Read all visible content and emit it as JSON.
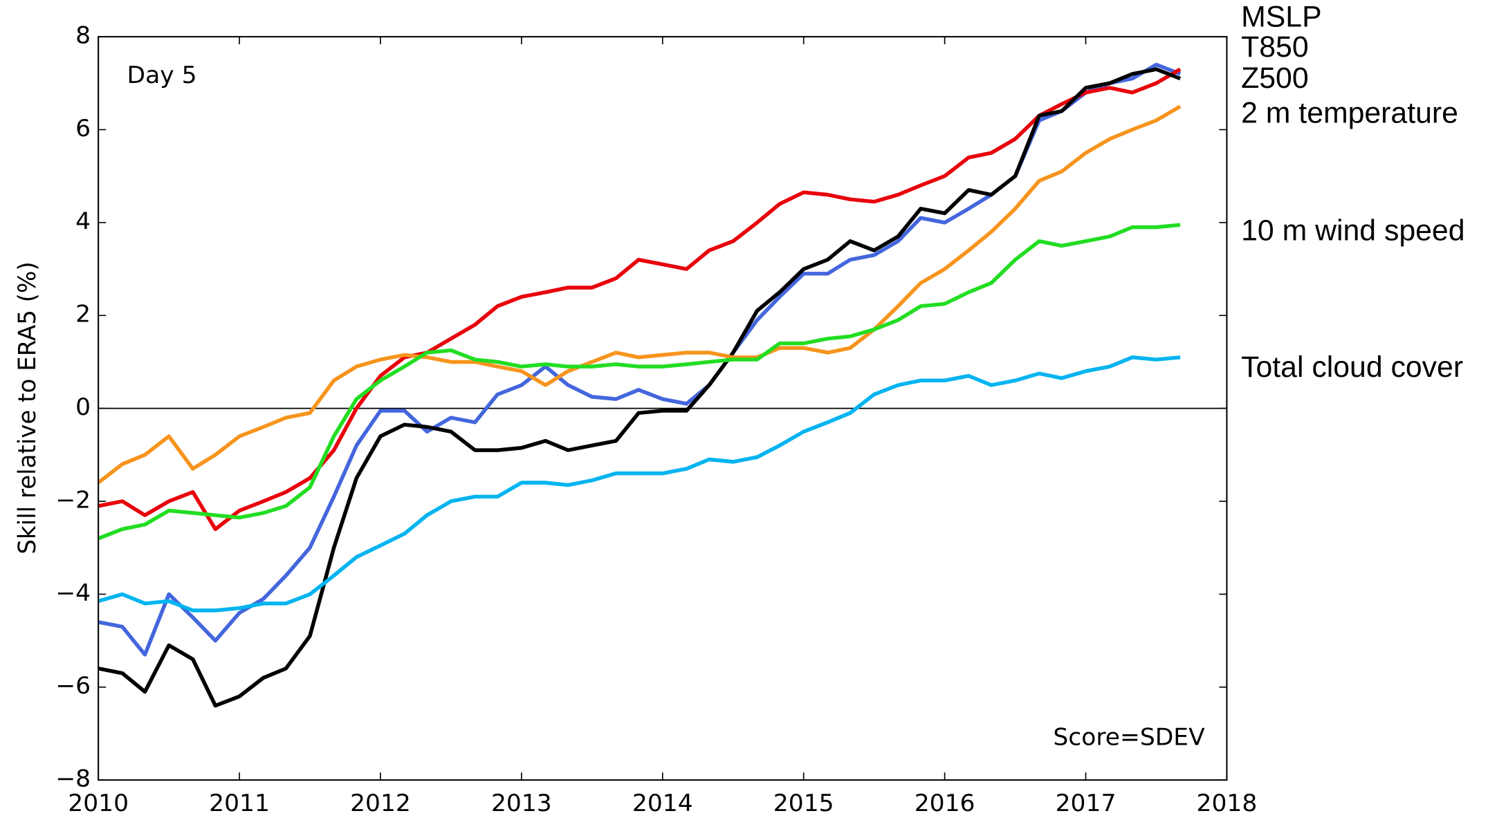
{
  "chart_data": {
    "type": "line",
    "annotations": [
      "Day 5",
      "Score=SDEV"
    ],
    "y_label": "Skill relative to ERA5 (%)",
    "x": [
      2010,
      2010.17,
      2010.33,
      2010.5,
      2010.67,
      2010.83,
      2011,
      2011.17,
      2011.33,
      2011.5,
      2011.67,
      2011.83,
      2012,
      2012.17,
      2012.33,
      2012.5,
      2012.67,
      2012.83,
      2013,
      2013.17,
      2013.33,
      2013.5,
      2013.67,
      2013.83,
      2014,
      2014.17,
      2014.33,
      2014.5,
      2014.67,
      2014.83,
      2015,
      2015.17,
      2015.33,
      2015.5,
      2015.67,
      2015.83,
      2016,
      2016.17,
      2016.33,
      2016.5,
      2016.67,
      2016.83,
      2017,
      2017.17,
      2017.33,
      2017.5,
      2017.67
    ],
    "series": [
      {
        "name": "MSLP",
        "color": "#4466dd",
        "values": [
          -4.6,
          -4.7,
          -5.3,
          -4.0,
          -4.5,
          -5.0,
          -4.4,
          -4.1,
          -3.6,
          -3.0,
          -1.9,
          -0.8,
          -0.05,
          -0.05,
          -0.5,
          -0.2,
          -0.3,
          0.3,
          0.5,
          0.9,
          0.5,
          0.25,
          0.2,
          0.4,
          0.2,
          0.1,
          0.5,
          1.2,
          1.9,
          2.4,
          2.9,
          2.9,
          3.2,
          3.3,
          3.6,
          4.1,
          4.0,
          4.3,
          4.6,
          5.0,
          6.2,
          6.4,
          6.8,
          7.0,
          7.1,
          7.4,
          7.2
        ]
      },
      {
        "name": "T850",
        "color": "#e8000b",
        "values": [
          -2.1,
          -2.0,
          -2.3,
          -2.0,
          -1.8,
          -2.6,
          -2.2,
          -2.0,
          -1.8,
          -1.5,
          -0.9,
          0.0,
          0.7,
          1.1,
          1.2,
          1.5,
          1.8,
          2.2,
          2.4,
          2.5,
          2.6,
          2.6,
          2.8,
          3.2,
          3.1,
          3.0,
          3.4,
          3.6,
          4.0,
          4.4,
          4.65,
          4.6,
          4.5,
          4.45,
          4.6,
          4.8,
          5.0,
          5.4,
          5.5,
          5.8,
          6.3,
          6.55,
          6.8,
          6.9,
          6.8,
          7.0,
          7.3
        ]
      },
      {
        "name": "Z500",
        "color": "#000000",
        "values": [
          -5.6,
          -5.7,
          -6.1,
          -5.1,
          -5.4,
          -6.4,
          -6.2,
          -5.8,
          -5.6,
          -4.9,
          -3.0,
          -1.5,
          -0.6,
          -0.35,
          -0.4,
          -0.5,
          -0.9,
          -0.9,
          -0.85,
          -0.7,
          -0.9,
          -0.8,
          -0.7,
          -0.1,
          -0.05,
          -0.05,
          0.5,
          1.2,
          2.1,
          2.5,
          3.0,
          3.2,
          3.6,
          3.4,
          3.7,
          4.3,
          4.2,
          4.7,
          4.6,
          5.0,
          6.3,
          6.4,
          6.9,
          7.0,
          7.2,
          7.3,
          7.1
        ]
      },
      {
        "name": "2 m temperature",
        "color": "#f7941d",
        "values": [
          -1.6,
          -1.2,
          -1.0,
          -0.6,
          -1.3,
          -1.0,
          -0.6,
          -0.4,
          -0.2,
          -0.1,
          0.6,
          0.9,
          1.05,
          1.15,
          1.1,
          1.0,
          1.0,
          0.9,
          0.8,
          0.5,
          0.8,
          1.0,
          1.2,
          1.1,
          1.15,
          1.2,
          1.2,
          1.1,
          1.1,
          1.3,
          1.3,
          1.2,
          1.3,
          1.7,
          2.2,
          2.7,
          3.0,
          3.4,
          3.8,
          4.3,
          4.9,
          5.1,
          5.5,
          5.8,
          6.0,
          6.2,
          6.5
        ]
      },
      {
        "name": "10 m wind speed",
        "color": "#22dd22",
        "values": [
          -2.8,
          -2.6,
          -2.5,
          -2.2,
          -2.25,
          -2.3,
          -2.35,
          -2.25,
          -2.1,
          -1.7,
          -0.6,
          0.2,
          0.6,
          0.9,
          1.2,
          1.25,
          1.05,
          1.0,
          0.9,
          0.95,
          0.9,
          0.9,
          0.95,
          0.9,
          0.9,
          0.95,
          1.0,
          1.05,
          1.05,
          1.4,
          1.4,
          1.5,
          1.55,
          1.7,
          1.9,
          2.2,
          2.25,
          2.5,
          2.7,
          3.2,
          3.6,
          3.5,
          3.6,
          3.7,
          3.9,
          3.9,
          3.95
        ]
      },
      {
        "name": "Total cloud cover",
        "color": "#00b4f0",
        "values": [
          -4.15,
          -4.0,
          -4.2,
          -4.15,
          -4.35,
          -4.35,
          -4.3,
          -4.2,
          -4.2,
          -4.0,
          -3.6,
          -3.2,
          -2.95,
          -2.7,
          -2.3,
          -2.0,
          -1.9,
          -1.9,
          -1.6,
          -1.6,
          -1.65,
          -1.55,
          -1.4,
          -1.4,
          -1.4,
          -1.3,
          -1.1,
          -1.15,
          -1.05,
          -0.8,
          -0.5,
          -0.3,
          -0.1,
          0.3,
          0.5,
          0.6,
          0.6,
          0.7,
          0.5,
          0.6,
          0.75,
          0.65,
          0.8,
          0.9,
          1.1,
          1.05,
          1.1
        ]
      }
    ],
    "reference_line": 0,
    "xlim": [
      2010,
      2018
    ],
    "xticks": [
      2010,
      2011,
      2012,
      2013,
      2014,
      2015,
      2016,
      2017,
      2018
    ],
    "ylim": [
      -8,
      8
    ],
    "yticks": [
      {
        "value": -8,
        "label": "−8"
      },
      {
        "value": -6,
        "label": "−6"
      },
      {
        "value": -4,
        "label": "−4"
      },
      {
        "value": -2,
        "label": "−2"
      },
      0,
      2,
      4,
      6,
      8
    ],
    "grid": false
  }
}
